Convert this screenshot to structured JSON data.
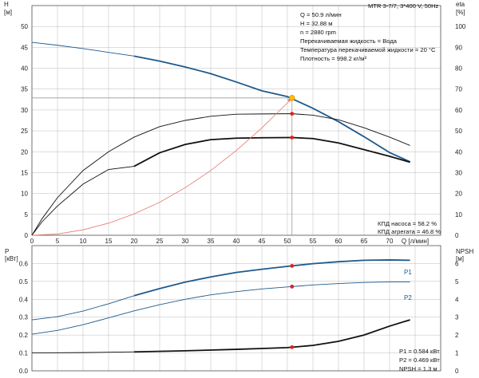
{
  "header": {
    "left_axis_unit": "[м]",
    "left_axis_var": "H",
    "right_axis_var": "eta",
    "right_axis_unit": "[%]",
    "model": "MTR 3-7/7, 3*400 V, 50Hz"
  },
  "duty_info": [
    "Q = 50.9 л/мин",
    "H = 32.88 м",
    "n = 2880 rpm",
    "Перекачиваемая жидкость = Вода",
    "Температура перекачиваемой жидкости = 20 °C",
    "Плотность = 998.2 кг/м³"
  ],
  "efficiency_info": [
    "КПД насоса = 58.2 %",
    "КПД агрегата = 46.8 %"
  ],
  "power_info": [
    "P1 = 0.584 кВт",
    "P2 = 0.469 кВт",
    "NPSH = 1.3 м"
  ],
  "lower_axes": {
    "left_var": "P",
    "left_unit": "[кВт]",
    "right_var": "NPSH",
    "right_unit": "[м]"
  },
  "colors": {
    "head": "#1f5a8c",
    "power": "#1f5a8c",
    "efficiency": "#111111",
    "system": "#e8786e",
    "marker": "#e02020",
    "duty_point": "#ffc000",
    "grid": "#bbbbbb"
  },
  "chart_data": [
    {
      "type": "line",
      "ylabel": "H [м]",
      "y2label": "eta [%]",
      "xlabel": "Q [л/мин]",
      "xlim": [
        0,
        80
      ],
      "ylim": [
        0,
        55
      ],
      "y2lim": [
        0,
        110
      ],
      "xticks": [
        0,
        5,
        10,
        15,
        20,
        25,
        30,
        35,
        40,
        45,
        50,
        55,
        60,
        65,
        70,
        75
      ],
      "xtick_labels": [
        "0",
        "5",
        "10",
        "15",
        "20",
        "25",
        "30",
        "35",
        "40",
        "45",
        "50",
        "55",
        "60",
        "65",
        "70",
        "Q [л/мин]"
      ],
      "yticks": [
        0,
        5,
        10,
        15,
        20,
        25,
        30,
        35,
        40,
        45,
        50
      ],
      "y2ticks": [
        0,
        10,
        20,
        30,
        40,
        50,
        60,
        70,
        80,
        90,
        100
      ],
      "grid": true,
      "duty_point": {
        "x": 50.9,
        "y": 32.88
      },
      "series": [
        {
          "key": "head",
          "axis": "left",
          "x": [
            0,
            5,
            10,
            15,
            20,
            25,
            30,
            35,
            40,
            45,
            50,
            55,
            60,
            65,
            70,
            74
          ],
          "y": [
            46.2,
            45.5,
            44.7,
            43.8,
            42.9,
            41.7,
            40.3,
            38.7,
            36.7,
            34.6,
            33.2,
            30.4,
            27.2,
            23.6,
            19.8,
            17.6
          ],
          "bold_from": 20
        },
        {
          "key": "pump_efficiency",
          "axis": "right",
          "x": [
            0,
            2,
            5,
            10,
            15,
            20,
            25,
            30,
            35,
            40,
            45,
            50,
            51,
            55,
            60,
            65,
            70,
            74
          ],
          "y": [
            0,
            8,
            18,
            31,
            40,
            47,
            52,
            55,
            57,
            58,
            58.1,
            58.2,
            58.2,
            57.5,
            55.3,
            51.5,
            47,
            43
          ],
          "bold_from": null
        },
        {
          "key": "total_efficiency",
          "axis": "right",
          "x": [
            0,
            2,
            5,
            10,
            15,
            20,
            25,
            30,
            35,
            40,
            45,
            50,
            51,
            55,
            60,
            65,
            70,
            74
          ],
          "y": [
            0,
            6.5,
            14,
            24.5,
            31.5,
            33,
            39.5,
            43.5,
            45.8,
            46.5,
            46.7,
            46.8,
            46.8,
            46.3,
            44.2,
            41,
            37.8,
            35
          ],
          "bold_from": 20
        },
        {
          "key": "system_curve",
          "axis": "left",
          "x": [
            0,
            5,
            10,
            15,
            20,
            25,
            30,
            35,
            40,
            45,
            50,
            50.9
          ],
          "y": [
            0,
            0.3,
            1.3,
            2.9,
            5.1,
            7.9,
            11.4,
            15.5,
            20.3,
            25.7,
            31.7,
            32.88
          ],
          "bold_from": null
        }
      ]
    },
    {
      "type": "line",
      "ylabel": "P [кВт]",
      "y2label": "NPSH [м]",
      "xlim": [
        0,
        80
      ],
      "ylim": [
        0,
        0.7
      ],
      "y2lim": [
        0,
        7
      ],
      "yticks": [
        0,
        0.1,
        0.2,
        0.3,
        0.4,
        0.5,
        0.6
      ],
      "ytick_labels": [
        "0.0",
        "0.1",
        "0.2",
        "0.3",
        "0.4",
        "0.5",
        "0.6"
      ],
      "y2ticks": [
        0,
        1,
        2,
        3,
        4,
        5,
        6
      ],
      "grid": true,
      "series": [
        {
          "name": "P1",
          "key": "P1",
          "axis": "left",
          "x": [
            0,
            5,
            10,
            15,
            20,
            25,
            30,
            35,
            40,
            45,
            50,
            55,
            60,
            65,
            70,
            74
          ],
          "y": [
            0.285,
            0.303,
            0.334,
            0.375,
            0.42,
            0.46,
            0.496,
            0.525,
            0.55,
            0.568,
            0.584,
            0.599,
            0.61,
            0.618,
            0.62,
            0.618
          ],
          "bold_from": 20
        },
        {
          "name": "P2",
          "key": "P2",
          "axis": "left",
          "x": [
            0,
            5,
            10,
            15,
            20,
            25,
            30,
            35,
            40,
            45,
            50,
            55,
            60,
            65,
            70,
            74
          ],
          "y": [
            0.205,
            0.226,
            0.258,
            0.296,
            0.335,
            0.37,
            0.4,
            0.425,
            0.443,
            0.458,
            0.469,
            0.48,
            0.488,
            0.494,
            0.497,
            0.497
          ],
          "bold_from": null
        },
        {
          "key": "NPSH",
          "axis": "right",
          "x": [
            0,
            10,
            20,
            30,
            40,
            45,
            50,
            55,
            60,
            65,
            70,
            74
          ],
          "y": [
            1.0,
            1.02,
            1.06,
            1.12,
            1.2,
            1.25,
            1.3,
            1.42,
            1.65,
            2.0,
            2.5,
            2.85
          ],
          "bold_from": 20
        }
      ],
      "duty_markers": [
        {
          "x": 50.9,
          "series": "P1"
        },
        {
          "x": 50.9,
          "series": "P2"
        },
        {
          "x": 50.9,
          "series": "NPSH"
        }
      ]
    }
  ]
}
